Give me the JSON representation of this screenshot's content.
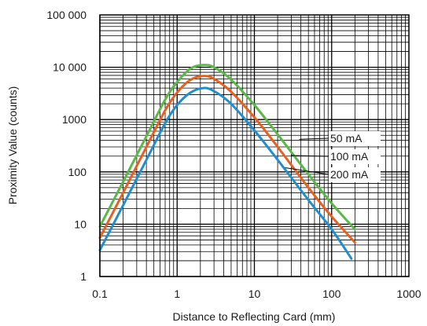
{
  "chart_data": {
    "type": "line",
    "title": "",
    "xlabel": "Distance to Reflecting Card (mm)",
    "ylabel": "Proximity Value (counts)",
    "xscale": "log",
    "yscale": "log",
    "xlim": [
      0.1,
      1000
    ],
    "ylim": [
      1,
      100000
    ],
    "grid": true,
    "x_ticks": [
      0.1,
      1,
      10,
      100,
      1000
    ],
    "x_tick_labels": [
      "0.1",
      "1",
      "10",
      "100",
      "1000"
    ],
    "y_ticks": [
      1,
      10,
      100,
      1000,
      10000,
      100000
    ],
    "y_tick_labels": [
      "1",
      "10",
      "100",
      "1000",
      "10 000",
      "100 000"
    ],
    "series": [
      {
        "name": "50 mA",
        "color": "#e8601c",
        "points": [
          [
            0.1,
            5.5
          ],
          [
            0.2,
            40
          ],
          [
            0.4,
            300
          ],
          [
            0.7,
            1500
          ],
          [
            1.0,
            3300
          ],
          [
            1.5,
            5800
          ],
          [
            2.2,
            6800
          ],
          [
            3.0,
            6000
          ],
          [
            5.0,
            3400
          ],
          [
            10,
            1100
          ],
          [
            20,
            300
          ],
          [
            50,
            50
          ],
          [
            100,
            14
          ],
          [
            200,
            4.5
          ]
        ]
      },
      {
        "name": "100 mA",
        "color": "#59b947",
        "points": [
          [
            0.1,
            9
          ],
          [
            0.2,
            65
          ],
          [
            0.4,
            480
          ],
          [
            0.7,
            2400
          ],
          [
            1.0,
            5200
          ],
          [
            1.5,
            9500
          ],
          [
            2.2,
            11000
          ],
          [
            3.0,
            10000
          ],
          [
            5.0,
            5800
          ],
          [
            10,
            1900
          ],
          [
            20,
            520
          ],
          [
            50,
            90
          ],
          [
            100,
            25
          ],
          [
            200,
            8
          ]
        ]
      },
      {
        "name": "200 mA",
        "color": "#1f8ed1",
        "points": [
          [
            0.1,
            3.2
          ],
          [
            0.2,
            23
          ],
          [
            0.4,
            170
          ],
          [
            0.7,
            850
          ],
          [
            1.0,
            1900
          ],
          [
            1.5,
            3300
          ],
          [
            2.2,
            4000
          ],
          [
            3.0,
            3500
          ],
          [
            5.0,
            2000
          ],
          [
            10,
            620
          ],
          [
            20,
            170
          ],
          [
            50,
            29
          ],
          [
            100,
            8
          ],
          [
            180,
            2.2
          ]
        ]
      }
    ],
    "legend": [
      "50 mA",
      "100 mA",
      "200 mA"
    ],
    "legend_placement": "right"
  }
}
